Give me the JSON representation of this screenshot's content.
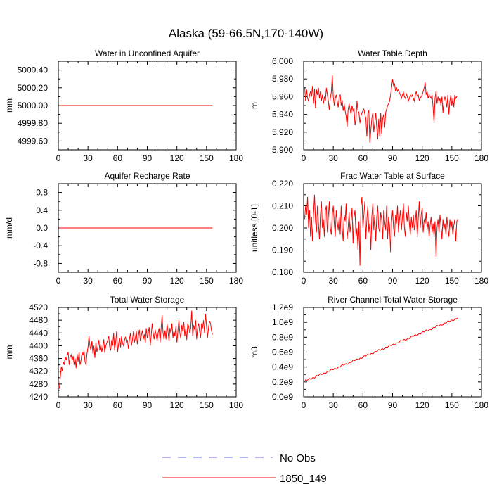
{
  "figure": {
    "title": "Alaska (59-66.5N,170-140W)"
  },
  "colors": {
    "series": "#ff0000",
    "obs": "#6a6ad8",
    "axis": "#000000"
  },
  "legend": {
    "items": [
      {
        "label": "No Obs",
        "style": "dashed",
        "color": "#6a6ad8"
      },
      {
        "label": "1850_149",
        "style": "solid",
        "color": "#ff0000"
      }
    ]
  },
  "chart_data": [
    {
      "type": "line",
      "title": "Water in Unconfined Aquifer",
      "ylabel": "mm",
      "xlim": [
        0,
        180
      ],
      "xticks": [
        0,
        30,
        60,
        90,
        120,
        150,
        180
      ],
      "xtick_labels": [
        "0",
        "30",
        "60",
        "90",
        "120",
        "150",
        "180"
      ],
      "ylim": [
        4999.5,
        5000.5
      ],
      "yticks": [
        4999.6,
        4999.8,
        5000.0,
        5000.2,
        5000.4
      ],
      "ytick_labels": [
        "4999.60",
        "4999.80",
        "5000.00",
        "5000.20",
        "5000.40"
      ],
      "series": [
        {
          "name": "1850_149",
          "x_start": 1,
          "x_step": 1,
          "values": [
            5000.0,
            5000.0
          ],
          "x": [
            1,
            156
          ]
        }
      ]
    },
    {
      "type": "line",
      "title": "Water Table Depth",
      "ylabel": "m",
      "xlim": [
        0,
        180
      ],
      "xticks": [
        0,
        30,
        60,
        90,
        120,
        150,
        180
      ],
      "xtick_labels": [
        "0",
        "30",
        "60",
        "90",
        "120",
        "150",
        "180"
      ],
      "ylim": [
        5.9,
        6.0
      ],
      "yticks": [
        5.9,
        5.92,
        5.94,
        5.96,
        5.98,
        6.0
      ],
      "ytick_labels": [
        "5.900",
        "5.920",
        "5.940",
        "5.960",
        "5.980",
        "6.000"
      ],
      "series": [
        {
          "name": "1850_149",
          "x_start": 1,
          "x_step": 1,
          "values": [
            5.971,
            5.955,
            5.968,
            5.958,
            5.955,
            5.962,
            5.966,
            5.96,
            5.972,
            5.952,
            5.969,
            5.947,
            5.968,
            5.962,
            5.97,
            5.958,
            5.966,
            5.955,
            5.962,
            5.952,
            5.96,
            5.955,
            5.97,
            5.962,
            5.955,
            5.945,
            5.958,
            5.965,
            5.984,
            5.96,
            5.95,
            5.958,
            5.962,
            5.955,
            5.948,
            5.96,
            5.962,
            5.95,
            5.956,
            5.944,
            5.952,
            5.944,
            5.938,
            5.926,
            5.945,
            5.952,
            5.946,
            5.94,
            5.95,
            5.944,
            5.947,
            5.928,
            5.935,
            5.955,
            5.944,
            5.942,
            5.93,
            5.938,
            5.942,
            5.944,
            5.946,
            5.94,
            5.935,
            5.915,
            5.942,
            5.944,
            5.908,
            5.922,
            5.935,
            5.942,
            5.92,
            5.93,
            5.942,
            5.925,
            5.912,
            5.935,
            5.915,
            5.942,
            5.918,
            5.935,
            5.94,
            5.925,
            5.942,
            5.946,
            5.95,
            5.952,
            5.955,
            5.962,
            5.97,
            5.98,
            5.972,
            5.975,
            5.966,
            5.97,
            5.966,
            5.968,
            5.964,
            5.962,
            5.958,
            5.962,
            5.965,
            5.96,
            5.958,
            5.963,
            5.96,
            5.955,
            5.958,
            5.962,
            5.96,
            5.962,
            5.958,
            5.955,
            5.962,
            5.966,
            5.96,
            5.962,
            5.956,
            5.958,
            5.96,
            5.962,
            5.966,
            5.97,
            5.976,
            5.962,
            5.966,
            5.958,
            5.962,
            5.96,
            5.958,
            5.962,
            5.948,
            5.93,
            5.958,
            5.966,
            5.952,
            5.96,
            5.955,
            5.958,
            5.95,
            5.96,
            5.942,
            5.955,
            5.96,
            5.955,
            5.948,
            5.962,
            5.94,
            5.955,
            5.962,
            5.95,
            5.958,
            5.948,
            5.962,
            5.958,
            5.96,
            5.961
          ]
        }
      ]
    },
    {
      "type": "line",
      "title": "Aquifer Recharge Rate",
      "ylabel": "mm/d",
      "xlim": [
        0,
        180
      ],
      "xticks": [
        0,
        30,
        60,
        90,
        120,
        150,
        180
      ],
      "xtick_labels": [
        "0",
        "30",
        "60",
        "90",
        "120",
        "150",
        "180"
      ],
      "ylim": [
        -1.0,
        1.0
      ],
      "yticks": [
        -0.8,
        -0.4,
        0.0,
        0.4,
        0.8
      ],
      "ytick_labels": [
        "-0.8",
        "-0.4",
        "0.0",
        "0.4",
        "0.8"
      ],
      "series": [
        {
          "name": "1850_149",
          "values": [
            0.0,
            0.0
          ],
          "x": [
            1,
            156
          ]
        }
      ]
    },
    {
      "type": "line",
      "title": "Frac Water Table at Surface",
      "ylabel": "unitless [0-1]",
      "xlim": [
        0,
        180
      ],
      "xticks": [
        0,
        30,
        60,
        90,
        120,
        150,
        180
      ],
      "xtick_labels": [
        "0",
        "30",
        "60",
        "90",
        "120",
        "150",
        "180"
      ],
      "ylim": [
        0.18,
        0.22
      ],
      "yticks": [
        0.18,
        0.19,
        0.2,
        0.21,
        0.22
      ],
      "ytick_labels": [
        "0.180",
        "0.190",
        "0.200",
        "0.210",
        "0.220"
      ],
      "series": [
        {
          "name": "1850_149",
          "x_start": 1,
          "x_step": 1,
          "values": [
            0.204,
            0.21,
            0.206,
            0.214,
            0.2,
            0.208,
            0.196,
            0.205,
            0.194,
            0.206,
            0.215,
            0.203,
            0.198,
            0.21,
            0.202,
            0.195,
            0.206,
            0.212,
            0.2,
            0.204,
            0.196,
            0.208,
            0.21,
            0.198,
            0.205,
            0.212,
            0.2,
            0.197,
            0.206,
            0.21,
            0.202,
            0.196,
            0.208,
            0.203,
            0.199,
            0.205,
            0.197,
            0.21,
            0.2,
            0.194,
            0.206,
            0.203,
            0.211,
            0.195,
            0.2,
            0.207,
            0.198,
            0.203,
            0.209,
            0.193,
            0.205,
            0.208,
            0.196,
            0.2,
            0.19,
            0.203,
            0.183,
            0.21,
            0.214,
            0.2,
            0.206,
            0.212,
            0.195,
            0.204,
            0.21,
            0.198,
            0.202,
            0.19,
            0.205,
            0.211,
            0.199,
            0.206,
            0.194,
            0.205,
            0.21,
            0.2,
            0.198,
            0.207,
            0.204,
            0.195,
            0.208,
            0.203,
            0.199,
            0.21,
            0.195,
            0.205,
            0.201,
            0.189,
            0.203,
            0.208,
            0.2,
            0.196,
            0.206,
            0.202,
            0.21,
            0.198,
            0.204,
            0.208,
            0.199,
            0.205,
            0.211,
            0.2,
            0.196,
            0.207,
            0.203,
            0.21,
            0.202,
            0.197,
            0.205,
            0.2,
            0.206,
            0.199,
            0.203,
            0.208,
            0.196,
            0.204,
            0.212,
            0.2,
            0.206,
            0.209,
            0.198,
            0.204,
            0.202,
            0.207,
            0.199,
            0.203,
            0.196,
            0.201,
            0.205,
            0.198,
            0.202,
            0.196,
            0.203,
            0.187,
            0.2,
            0.204,
            0.198,
            0.206,
            0.201,
            0.195,
            0.204,
            0.199,
            0.202,
            0.197,
            0.205,
            0.2,
            0.196,
            0.204,
            0.199,
            0.203,
            0.197,
            0.201,
            0.204,
            0.194,
            0.203,
            0.204
          ]
        }
      ]
    },
    {
      "type": "line",
      "title": "Total Water Storage",
      "ylabel": "mm",
      "xlim": [
        0,
        180
      ],
      "xticks": [
        0,
        30,
        60,
        90,
        120,
        150,
        180
      ],
      "xtick_labels": [
        "0",
        "30",
        "60",
        "90",
        "120",
        "150",
        "180"
      ],
      "ylim": [
        4240,
        4520
      ],
      "yticks": [
        4240,
        4280,
        4320,
        4360,
        4400,
        4440,
        4480,
        4520
      ],
      "ytick_labels": [
        "4240",
        "4280",
        "4320",
        "4360",
        "4400",
        "4440",
        "4480",
        "4520"
      ],
      "series": [
        {
          "name": "1850_149",
          "x_start": 1,
          "x_step": 1,
          "values": [
            4265,
            4300,
            4335,
            4320,
            4350,
            4340,
            4365,
            4355,
            4370,
            4380,
            4340,
            4365,
            4372,
            4355,
            4368,
            4340,
            4360,
            4330,
            4375,
            4350,
            4380,
            4340,
            4355,
            4380,
            4370,
            4385,
            4350,
            4340,
            4375,
            4395,
            4430,
            4400,
            4385,
            4415,
            4375,
            4400,
            4362,
            4410,
            4380,
            4396,
            4418,
            4385,
            4405,
            4380,
            4398,
            4420,
            4378,
            4400,
            4408,
            4418,
            4430,
            4395,
            4385,
            4418,
            4400,
            4440,
            4385,
            4410,
            4445,
            4380,
            4405,
            4425,
            4395,
            4430,
            4408,
            4400,
            4418,
            4428,
            4410,
            4416,
            4390,
            4420,
            4440,
            4400,
            4418,
            4445,
            4410,
            4425,
            4445,
            4405,
            4430,
            4450,
            4415,
            4432,
            4448,
            4420,
            4436,
            4410,
            4455,
            4425,
            4440,
            4458,
            4400,
            4432,
            4470,
            4440,
            4420,
            4450,
            4435,
            4415,
            4440,
            4455,
            4410,
            4452,
            4495,
            4440,
            4420,
            4448,
            4420,
            4470,
            4445,
            4415,
            4456,
            4438,
            4470,
            4425,
            4448,
            4430,
            4460,
            4410,
            4445,
            4480,
            4440,
            4422,
            4465,
            4445,
            4475,
            4430,
            4452,
            4418,
            4470,
            4460,
            4440,
            4455,
            4510,
            4430,
            4465,
            4450,
            4480,
            4420,
            4455,
            4470,
            4445,
            4425,
            4470,
            4455,
            4480,
            4440,
            4500,
            4462,
            4425,
            4455,
            4478,
            4470,
            4448,
            4435
          ]
        }
      ]
    },
    {
      "type": "line",
      "title": "River Channel Total Water Storage",
      "ylabel": "m3",
      "xlim": [
        0,
        180
      ],
      "xticks": [
        0,
        30,
        60,
        90,
        120,
        150,
        180
      ],
      "xtick_labels": [
        "0",
        "30",
        "60",
        "90",
        "120",
        "150",
        "180"
      ],
      "ylim": [
        0,
        1200000000.0
      ],
      "yticks": [
        0,
        200000000.0,
        400000000.0,
        600000000.0,
        800000000.0,
        1000000000.0,
        1200000000.0
      ],
      "ytick_labels": [
        "0.0e9",
        "0.2e9",
        "0.4e9",
        "0.6e9",
        "0.8e9",
        "1.0e9",
        "1.2e9"
      ],
      "series": [
        {
          "name": "1850_149",
          "x_start": 1,
          "x_step": 1,
          "trend": {
            "start": 210000000.0,
            "end": 1060000000.0,
            "wiggle": 15000000.0
          }
        }
      ]
    }
  ]
}
